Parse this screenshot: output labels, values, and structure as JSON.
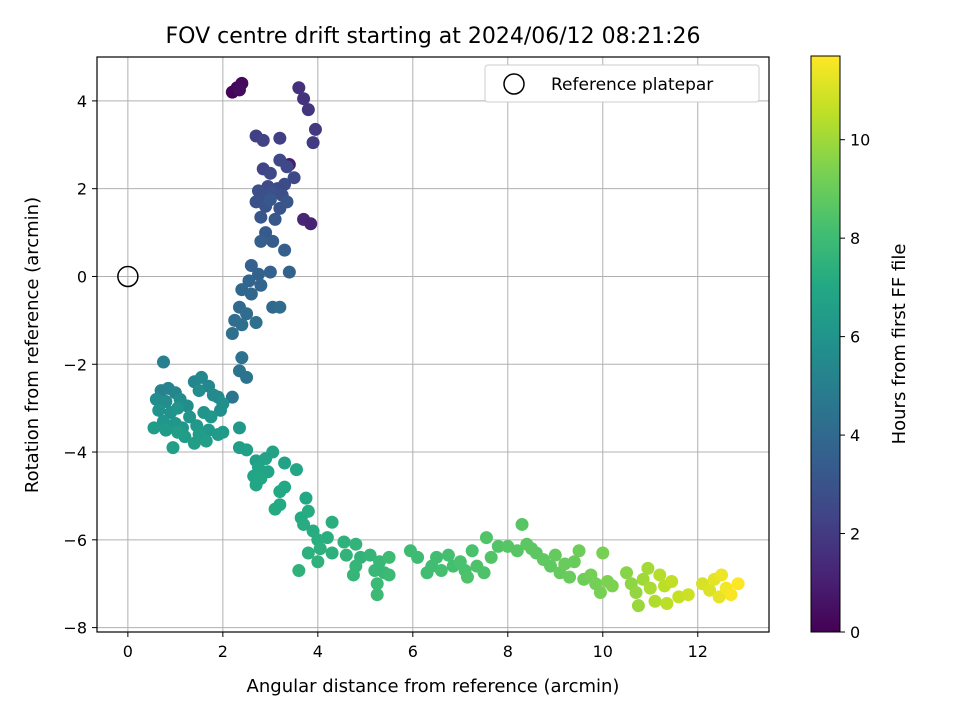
{
  "chart_data": {
    "type": "scatter",
    "title": "FOV centre drift starting at 2024/06/12 08:21:26",
    "xlabel": "Angular distance from reference (arcmin)",
    "ylabel": "Rotation from reference (arcmin)",
    "xlim": [
      -0.65,
      13.5
    ],
    "ylim": [
      -8.1,
      5.0
    ],
    "x_ticks": [
      0,
      2,
      4,
      6,
      8,
      10,
      12
    ],
    "y_ticks": [
      -8,
      -6,
      -4,
      -2,
      0,
      2,
      4
    ],
    "x_tick_labels": [
      "0",
      "2",
      "4",
      "6",
      "8",
      "10",
      "12"
    ],
    "y_tick_labels": [
      "−8",
      "−6",
      "−4",
      "−2",
      "0",
      "2",
      "4"
    ],
    "grid": true,
    "legend": {
      "position": "top-right",
      "entries": [
        "Reference platepar"
      ]
    },
    "reference_point": {
      "x": 0,
      "y": 0,
      "label": "Reference platepar"
    },
    "colorbar": {
      "label": "Hours from first FF file",
      "colormap": "viridis",
      "range": [
        0,
        11.7
      ],
      "ticks": [
        0,
        2,
        4,
        6,
        8,
        10
      ],
      "tick_labels": [
        "0",
        "2",
        "4",
        "6",
        "8",
        "10"
      ]
    },
    "series": [
      {
        "points": [
          {
            "x": 2.2,
            "y": 4.2,
            "c": 0.1
          },
          {
            "x": 2.3,
            "y": 4.3,
            "c": 0.2
          },
          {
            "x": 2.4,
            "y": 4.4,
            "c": 0.3
          },
          {
            "x": 2.35,
            "y": 4.25,
            "c": 0.4
          },
          {
            "x": 3.6,
            "y": 4.3,
            "c": 1.6
          },
          {
            "x": 3.7,
            "y": 4.05,
            "c": 1.7
          },
          {
            "x": 3.8,
            "y": 3.8,
            "c": 1.8
          },
          {
            "x": 3.95,
            "y": 3.35,
            "c": 1.9
          },
          {
            "x": 3.9,
            "y": 3.05,
            "c": 2.0
          },
          {
            "x": 3.7,
            "y": 1.3,
            "c": 1.2
          },
          {
            "x": 3.85,
            "y": 1.2,
            "c": 1.1
          },
          {
            "x": 3.4,
            "y": 2.55,
            "c": 1.0
          },
          {
            "x": 2.7,
            "y": 3.2,
            "c": 2.2
          },
          {
            "x": 2.85,
            "y": 3.1,
            "c": 2.3
          },
          {
            "x": 3.2,
            "y": 3.15,
            "c": 2.2
          },
          {
            "x": 3.2,
            "y": 2.65,
            "c": 2.5
          },
          {
            "x": 3.35,
            "y": 2.5,
            "c": 2.5
          },
          {
            "x": 2.85,
            "y": 2.45,
            "c": 2.4
          },
          {
            "x": 3.0,
            "y": 2.35,
            "c": 2.5
          },
          {
            "x": 3.5,
            "y": 2.25,
            "c": 2.6
          },
          {
            "x": 3.3,
            "y": 2.1,
            "c": 2.7
          },
          {
            "x": 3.15,
            "y": 2.0,
            "c": 2.6
          },
          {
            "x": 2.95,
            "y": 2.05,
            "c": 2.7
          },
          {
            "x": 2.75,
            "y": 1.95,
            "c": 2.8
          },
          {
            "x": 2.85,
            "y": 1.85,
            "c": 2.8
          },
          {
            "x": 3.05,
            "y": 1.9,
            "c": 2.9
          },
          {
            "x": 3.25,
            "y": 1.85,
            "c": 2.8
          },
          {
            "x": 2.7,
            "y": 1.7,
            "c": 2.9
          },
          {
            "x": 2.9,
            "y": 1.6,
            "c": 3.0
          },
          {
            "x": 3.2,
            "y": 1.55,
            "c": 3.0
          },
          {
            "x": 3.35,
            "y": 1.7,
            "c": 3.1
          },
          {
            "x": 2.8,
            "y": 1.35,
            "c": 3.1
          },
          {
            "x": 3.0,
            "y": 1.75,
            "c": 3.2
          },
          {
            "x": 3.1,
            "y": 1.3,
            "c": 3.2
          },
          {
            "x": 2.9,
            "y": 1.0,
            "c": 3.3
          },
          {
            "x": 3.05,
            "y": 0.8,
            "c": 3.4
          },
          {
            "x": 2.8,
            "y": 0.8,
            "c": 3.5
          },
          {
            "x": 3.3,
            "y": 0.6,
            "c": 3.5
          },
          {
            "x": 2.6,
            "y": 0.25,
            "c": 3.6
          },
          {
            "x": 3.0,
            "y": 0.1,
            "c": 3.6
          },
          {
            "x": 2.75,
            "y": 0.05,
            "c": 3.7
          },
          {
            "x": 3.4,
            "y": 0.1,
            "c": 3.7
          },
          {
            "x": 2.55,
            "y": -0.1,
            "c": 3.8
          },
          {
            "x": 2.8,
            "y": -0.2,
            "c": 3.8
          },
          {
            "x": 2.4,
            "y": -0.3,
            "c": 3.9
          },
          {
            "x": 2.6,
            "y": -0.4,
            "c": 3.9
          },
          {
            "x": 2.35,
            "y": -0.7,
            "c": 4.0
          },
          {
            "x": 3.05,
            "y": -0.7,
            "c": 4.0
          },
          {
            "x": 3.2,
            "y": -0.7,
            "c": 4.1
          },
          {
            "x": 2.5,
            "y": -0.85,
            "c": 4.1
          },
          {
            "x": 2.25,
            "y": -1.0,
            "c": 4.2
          },
          {
            "x": 2.4,
            "y": -1.1,
            "c": 4.2
          },
          {
            "x": 2.7,
            "y": -1.05,
            "c": 4.3
          },
          {
            "x": 2.2,
            "y": -1.3,
            "c": 4.3
          },
          {
            "x": 2.4,
            "y": -1.85,
            "c": 4.4
          },
          {
            "x": 2.35,
            "y": -2.15,
            "c": 4.5
          },
          {
            "x": 2.5,
            "y": -2.3,
            "c": 4.5
          },
          {
            "x": 0.75,
            "y": -1.95,
            "c": 5.0
          },
          {
            "x": 2.2,
            "y": -2.75,
            "c": 4.6
          },
          {
            "x": 0.7,
            "y": -2.6,
            "c": 5.2
          },
          {
            "x": 0.85,
            "y": -2.55,
            "c": 5.2
          },
          {
            "x": 1.0,
            "y": -2.65,
            "c": 5.3
          },
          {
            "x": 1.4,
            "y": -2.4,
            "c": 5.3
          },
          {
            "x": 1.55,
            "y": -2.3,
            "c": 5.4
          },
          {
            "x": 1.7,
            "y": -2.5,
            "c": 5.4
          },
          {
            "x": 1.8,
            "y": -2.7,
            "c": 5.5
          },
          {
            "x": 1.9,
            "y": -2.75,
            "c": 5.5
          },
          {
            "x": 0.6,
            "y": -2.8,
            "c": 5.6
          },
          {
            "x": 0.8,
            "y": -2.85,
            "c": 5.6
          },
          {
            "x": 1.1,
            "y": -2.8,
            "c": 5.7
          },
          {
            "x": 1.25,
            "y": -2.95,
            "c": 5.7
          },
          {
            "x": 1.5,
            "y": -2.6,
            "c": 5.6
          },
          {
            "x": 2.0,
            "y": -2.9,
            "c": 5.8
          },
          {
            "x": 1.95,
            "y": -3.05,
            "c": 5.8
          },
          {
            "x": 0.65,
            "y": -3.05,
            "c": 5.9
          },
          {
            "x": 0.9,
            "y": -3.1,
            "c": 5.9
          },
          {
            "x": 1.05,
            "y": -3.0,
            "c": 6.0
          },
          {
            "x": 1.3,
            "y": -3.2,
            "c": 6.0
          },
          {
            "x": 1.6,
            "y": -3.1,
            "c": 6.0
          },
          {
            "x": 1.75,
            "y": -3.2,
            "c": 6.1
          },
          {
            "x": 0.75,
            "y": -3.3,
            "c": 6.1
          },
          {
            "x": 1.0,
            "y": -3.35,
            "c": 6.1
          },
          {
            "x": 1.15,
            "y": -3.45,
            "c": 6.2
          },
          {
            "x": 1.45,
            "y": -3.4,
            "c": 6.2
          },
          {
            "x": 1.7,
            "y": -3.5,
            "c": 6.2
          },
          {
            "x": 1.9,
            "y": -3.6,
            "c": 6.3
          },
          {
            "x": 2.35,
            "y": -3.45,
            "c": 6.2
          },
          {
            "x": 2.0,
            "y": -3.55,
            "c": 6.3
          },
          {
            "x": 0.55,
            "y": -3.45,
            "c": 6.4
          },
          {
            "x": 0.8,
            "y": -3.5,
            "c": 6.3
          },
          {
            "x": 1.2,
            "y": -3.65,
            "c": 6.4
          },
          {
            "x": 1.5,
            "y": -3.6,
            "c": 6.4
          },
          {
            "x": 1.4,
            "y": -3.8,
            "c": 6.5
          },
          {
            "x": 1.65,
            "y": -3.75,
            "c": 6.5
          },
          {
            "x": 1.05,
            "y": -3.55,
            "c": 6.5
          },
          {
            "x": 0.95,
            "y": -3.9,
            "c": 6.6
          },
          {
            "x": 2.35,
            "y": -3.9,
            "c": 6.5
          },
          {
            "x": 2.5,
            "y": -3.95,
            "c": 6.6
          },
          {
            "x": 2.7,
            "y": -4.2,
            "c": 6.6
          },
          {
            "x": 3.05,
            "y": -4.0,
            "c": 6.7
          },
          {
            "x": 3.3,
            "y": -4.25,
            "c": 6.7
          },
          {
            "x": 2.9,
            "y": -4.15,
            "c": 6.7
          },
          {
            "x": 2.75,
            "y": -4.35,
            "c": 6.8
          },
          {
            "x": 2.95,
            "y": -4.45,
            "c": 6.8
          },
          {
            "x": 2.65,
            "y": -4.55,
            "c": 6.8
          },
          {
            "x": 3.55,
            "y": -4.4,
            "c": 6.9
          },
          {
            "x": 2.7,
            "y": -4.75,
            "c": 6.9
          },
          {
            "x": 2.8,
            "y": -4.6,
            "c": 6.9
          },
          {
            "x": 3.2,
            "y": -4.9,
            "c": 7.0
          },
          {
            "x": 3.3,
            "y": -4.8,
            "c": 7.0
          },
          {
            "x": 3.75,
            "y": -5.05,
            "c": 7.0
          },
          {
            "x": 3.1,
            "y": -5.3,
            "c": 7.1
          },
          {
            "x": 3.2,
            "y": -5.2,
            "c": 7.1
          },
          {
            "x": 3.65,
            "y": -5.5,
            "c": 7.1
          },
          {
            "x": 3.8,
            "y": -5.35,
            "c": 7.2
          },
          {
            "x": 3.7,
            "y": -5.65,
            "c": 7.2
          },
          {
            "x": 3.9,
            "y": -5.8,
            "c": 7.2
          },
          {
            "x": 4.3,
            "y": -5.6,
            "c": 7.3
          },
          {
            "x": 4.2,
            "y": -5.95,
            "c": 7.3
          },
          {
            "x": 4.0,
            "y": -6.0,
            "c": 7.3
          },
          {
            "x": 3.8,
            "y": -6.3,
            "c": 7.4
          },
          {
            "x": 4.05,
            "y": -6.2,
            "c": 7.4
          },
          {
            "x": 4.3,
            "y": -6.3,
            "c": 7.4
          },
          {
            "x": 4.55,
            "y": -6.05,
            "c": 7.5
          },
          {
            "x": 3.6,
            "y": -6.7,
            "c": 7.5
          },
          {
            "x": 4.0,
            "y": -6.5,
            "c": 7.5
          },
          {
            "x": 4.6,
            "y": -6.35,
            "c": 7.6
          },
          {
            "x": 4.8,
            "y": -6.1,
            "c": 7.6
          },
          {
            "x": 4.9,
            "y": -6.4,
            "c": 7.6
          },
          {
            "x": 4.8,
            "y": -6.6,
            "c": 7.7
          },
          {
            "x": 4.75,
            "y": -6.8,
            "c": 7.7
          },
          {
            "x": 5.1,
            "y": -6.35,
            "c": 7.7
          },
          {
            "x": 5.3,
            "y": -6.5,
            "c": 7.8
          },
          {
            "x": 5.2,
            "y": -6.7,
            "c": 7.8
          },
          {
            "x": 5.4,
            "y": -6.75,
            "c": 7.8
          },
          {
            "x": 5.5,
            "y": -6.8,
            "c": 7.9
          },
          {
            "x": 5.25,
            "y": -7.0,
            "c": 7.9
          },
          {
            "x": 5.25,
            "y": -7.25,
            "c": 7.9
          },
          {
            "x": 5.5,
            "y": -6.4,
            "c": 8.0
          },
          {
            "x": 5.95,
            "y": -6.25,
            "c": 8.0
          },
          {
            "x": 6.1,
            "y": -6.4,
            "c": 8.0
          },
          {
            "x": 6.3,
            "y": -6.75,
            "c": 8.1
          },
          {
            "x": 6.4,
            "y": -6.6,
            "c": 8.1
          },
          {
            "x": 6.5,
            "y": -6.4,
            "c": 8.1
          },
          {
            "x": 6.6,
            "y": -6.7,
            "c": 8.2
          },
          {
            "x": 6.75,
            "y": -6.35,
            "c": 8.2
          },
          {
            "x": 6.85,
            "y": -6.6,
            "c": 8.2
          },
          {
            "x": 7.0,
            "y": -6.5,
            "c": 8.3
          },
          {
            "x": 7.1,
            "y": -6.7,
            "c": 8.3
          },
          {
            "x": 7.25,
            "y": -6.25,
            "c": 8.3
          },
          {
            "x": 7.15,
            "y": -6.85,
            "c": 8.4
          },
          {
            "x": 7.35,
            "y": -6.6,
            "c": 8.4
          },
          {
            "x": 7.5,
            "y": -6.75,
            "c": 8.4
          },
          {
            "x": 7.55,
            "y": -5.95,
            "c": 8.5
          },
          {
            "x": 7.65,
            "y": -6.4,
            "c": 8.5
          },
          {
            "x": 7.8,
            "y": -6.15,
            "c": 8.5
          },
          {
            "x": 8.0,
            "y": -6.15,
            "c": 8.6
          },
          {
            "x": 8.2,
            "y": -6.25,
            "c": 8.6
          },
          {
            "x": 8.3,
            "y": -5.65,
            "c": 8.6
          },
          {
            "x": 8.4,
            "y": -6.1,
            "c": 8.7
          },
          {
            "x": 8.5,
            "y": -6.2,
            "c": 8.7
          },
          {
            "x": 8.6,
            "y": -6.3,
            "c": 8.7
          },
          {
            "x": 8.75,
            "y": -6.45,
            "c": 8.8
          },
          {
            "x": 8.9,
            "y": -6.6,
            "c": 8.8
          },
          {
            "x": 9.0,
            "y": -6.35,
            "c": 8.9
          },
          {
            "x": 9.1,
            "y": -6.75,
            "c": 8.9
          },
          {
            "x": 9.2,
            "y": -6.55,
            "c": 9.0
          },
          {
            "x": 9.3,
            "y": -6.85,
            "c": 9.0
          },
          {
            "x": 9.4,
            "y": -6.5,
            "c": 9.0
          },
          {
            "x": 9.5,
            "y": -6.25,
            "c": 9.1
          },
          {
            "x": 9.6,
            "y": -6.9,
            "c": 9.1
          },
          {
            "x": 9.75,
            "y": -6.8,
            "c": 9.2
          },
          {
            "x": 9.85,
            "y": -7.0,
            "c": 9.2
          },
          {
            "x": 9.95,
            "y": -7.2,
            "c": 9.3
          },
          {
            "x": 10.0,
            "y": -6.3,
            "c": 9.3
          },
          {
            "x": 10.1,
            "y": -6.95,
            "c": 9.4
          },
          {
            "x": 10.2,
            "y": -7.05,
            "c": 9.4
          },
          {
            "x": 10.5,
            "y": -6.75,
            "c": 9.6
          },
          {
            "x": 10.6,
            "y": -7.0,
            "c": 9.7
          },
          {
            "x": 10.7,
            "y": -7.2,
            "c": 9.8
          },
          {
            "x": 10.75,
            "y": -7.5,
            "c": 9.9
          },
          {
            "x": 10.85,
            "y": -6.9,
            "c": 10.0
          },
          {
            "x": 10.95,
            "y": -6.65,
            "c": 10.1
          },
          {
            "x": 11.0,
            "y": -7.1,
            "c": 10.2
          },
          {
            "x": 11.1,
            "y": -7.4,
            "c": 10.3
          },
          {
            "x": 11.2,
            "y": -6.8,
            "c": 10.4
          },
          {
            "x": 11.3,
            "y": -7.05,
            "c": 10.5
          },
          {
            "x": 11.35,
            "y": -7.45,
            "c": 10.5
          },
          {
            "x": 11.45,
            "y": -6.95,
            "c": 10.6
          },
          {
            "x": 11.6,
            "y": -7.3,
            "c": 10.7
          },
          {
            "x": 11.8,
            "y": -7.25,
            "c": 10.8
          },
          {
            "x": 12.1,
            "y": -7.0,
            "c": 11.0
          },
          {
            "x": 12.25,
            "y": -7.15,
            "c": 11.1
          },
          {
            "x": 12.35,
            "y": -6.9,
            "c": 11.2
          },
          {
            "x": 12.45,
            "y": -7.3,
            "c": 11.3
          },
          {
            "x": 12.5,
            "y": -6.8,
            "c": 11.4
          },
          {
            "x": 12.6,
            "y": -7.1,
            "c": 11.5
          },
          {
            "x": 12.7,
            "y": -7.25,
            "c": 11.6
          },
          {
            "x": 12.85,
            "y": -7.0,
            "c": 11.7
          }
        ]
      }
    ]
  }
}
